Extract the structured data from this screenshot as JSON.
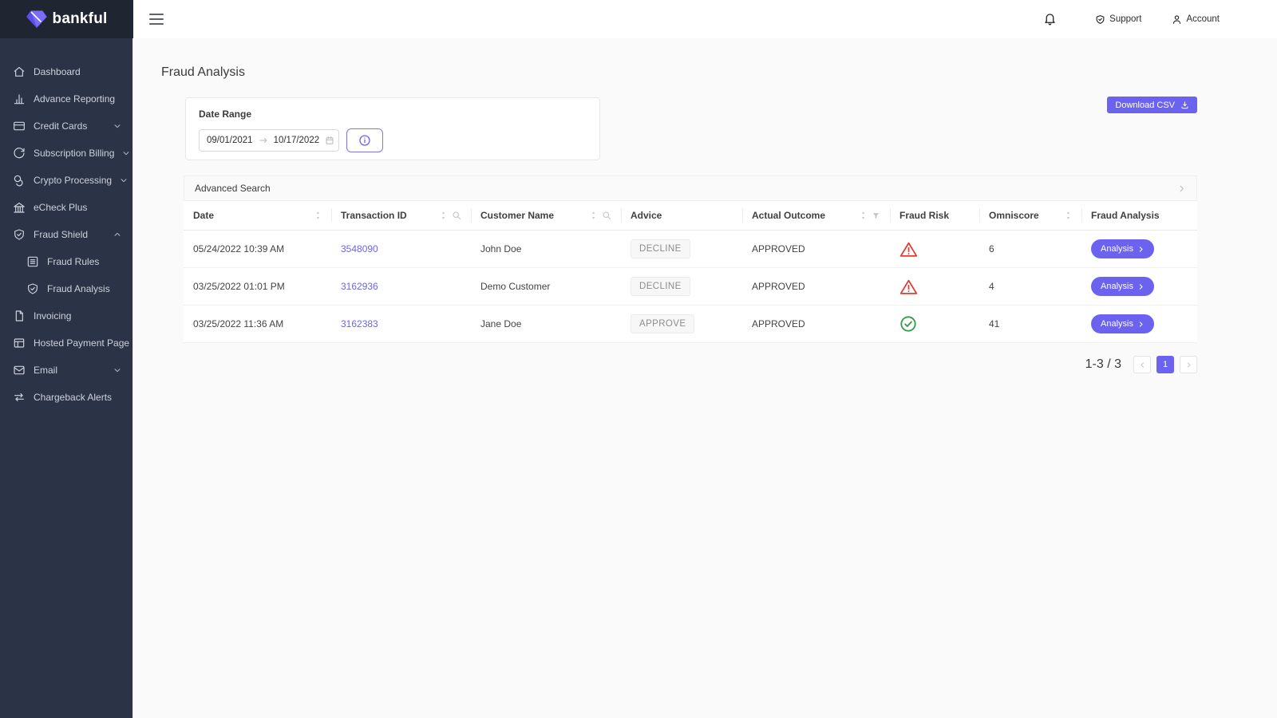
{
  "brand": {
    "name": "bankful"
  },
  "topbar": {
    "support_label": "Support",
    "account_label": "Account"
  },
  "sidebar": {
    "items": [
      {
        "label": "Dashboard",
        "icon": "home"
      },
      {
        "label": "Advance Reporting",
        "icon": "bar-chart"
      },
      {
        "label": "Credit Cards",
        "icon": "credit-card",
        "chevron": "down"
      },
      {
        "label": "Subscription Billing",
        "icon": "refresh",
        "chevron": "down"
      },
      {
        "label": "Crypto Processing",
        "icon": "coins",
        "chevron": "down"
      },
      {
        "label": "eCheck Plus",
        "icon": "bank"
      },
      {
        "label": "Fraud Shield",
        "icon": "shield-check",
        "chevron": "up"
      },
      {
        "label": "Fraud Rules",
        "icon": "list",
        "indent": true
      },
      {
        "label": "Fraud Analysis",
        "icon": "shield-check",
        "indent": true
      },
      {
        "label": "Invoicing",
        "icon": "file"
      },
      {
        "label": "Hosted Payment Page",
        "icon": "layout"
      },
      {
        "label": "Email",
        "icon": "mail",
        "chevron": "down"
      },
      {
        "label": "Chargeback Alerts",
        "icon": "swap-arrows"
      }
    ]
  },
  "page": {
    "title": "Fraud Analysis"
  },
  "filter": {
    "label": "Date Range",
    "date_from": "09/01/2021",
    "date_to": "10/17/2022"
  },
  "actions": {
    "download_csv_label": "Download CSV"
  },
  "advanced_search": {
    "label": "Advanced Search"
  },
  "table": {
    "columns": [
      {
        "label": "Date",
        "sort": true
      },
      {
        "label": "Transaction ID",
        "sort": true,
        "search": true
      },
      {
        "label": "Customer Name",
        "sort": true,
        "search": true
      },
      {
        "label": "Advice"
      },
      {
        "label": "Actual Outcome",
        "sort": true,
        "filter": true
      },
      {
        "label": "Fraud Risk"
      },
      {
        "label": "Omniscore",
        "sort": true
      },
      {
        "label": "Fraud Analysis"
      }
    ],
    "rows": [
      {
        "date": "05/24/2022 10:39 AM",
        "transaction_id": "3548090",
        "customer_name": "John Doe",
        "advice": "DECLINE",
        "actual_outcome": "APPROVED",
        "fraud_risk": "high",
        "omniscore": "6",
        "analysis_label": "Analysis"
      },
      {
        "date": "03/25/2022 01:01 PM",
        "transaction_id": "3162936",
        "customer_name": "Demo Customer",
        "advice": "DECLINE",
        "actual_outcome": "APPROVED",
        "fraud_risk": "high",
        "omniscore": "4",
        "analysis_label": "Analysis"
      },
      {
        "date": "03/25/2022 11:36 AM",
        "transaction_id": "3162383",
        "customer_name": "Jane Doe",
        "advice": "APPROVE",
        "actual_outcome": "APPROVED",
        "fraud_risk": "low",
        "omniscore": "41",
        "analysis_label": "Analysis"
      }
    ]
  },
  "pagination": {
    "summary": "1-3 / 3",
    "current_page": "1"
  },
  "colors": {
    "accent": "#6b63f0",
    "risk_high": "#e23b32",
    "risk_low": "#2f9e44",
    "sidebar_bg": "#2b3447",
    "logo_bg": "#1f2531"
  }
}
